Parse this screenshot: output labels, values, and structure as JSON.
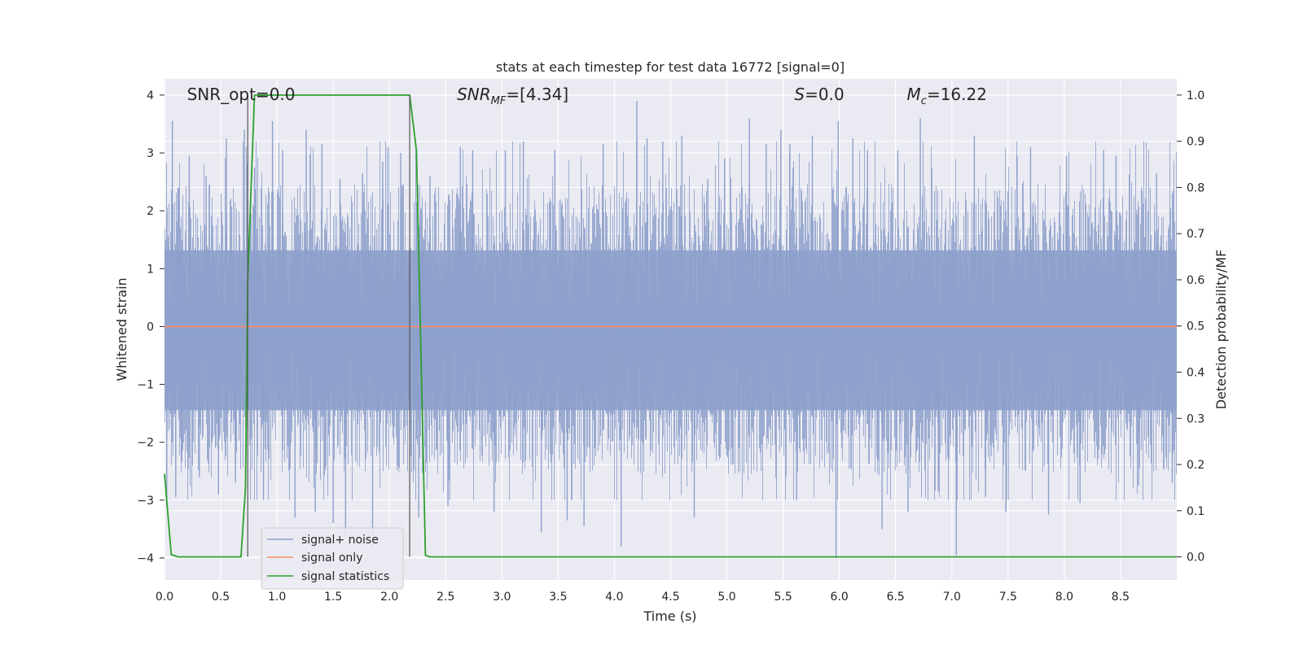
{
  "chart_data": {
    "type": "line",
    "title": "stats at each timestep for test data 16772 [signal=0]",
    "xlabel": "Time (s)",
    "ylabel_left": "Whitened strain",
    "ylabel_right": "Detection probability/MF",
    "xlim": [
      0.0,
      9.0
    ],
    "ylim_left": [
      -4.38,
      4.28
    ],
    "ylim_right": [
      -0.05,
      1.035
    ],
    "grid": true,
    "legend_position": "lower-left",
    "x_ticks": [
      "0.0",
      "0.5",
      "1.0",
      "1.5",
      "2.0",
      "2.5",
      "3.0",
      "3.5",
      "4.0",
      "4.5",
      "5.0",
      "5.5",
      "6.0",
      "6.5",
      "7.0",
      "7.5",
      "8.0",
      "8.5"
    ],
    "x_tick_values": [
      0.0,
      0.5,
      1.0,
      1.5,
      2.0,
      2.5,
      3.0,
      3.5,
      4.0,
      4.5,
      5.0,
      5.5,
      6.0,
      6.5,
      7.0,
      7.5,
      8.0,
      8.5
    ],
    "y_left_ticks": [
      "4",
      "3",
      "2",
      "1",
      "0",
      "−1",
      "−2",
      "−3",
      "−4"
    ],
    "y_left_tick_values": [
      4,
      3,
      2,
      1,
      0,
      -1,
      -2,
      -3,
      -4
    ],
    "y_right_ticks": [
      "1.0",
      "0.9",
      "0.8",
      "0.7",
      "0.6",
      "0.5",
      "0.4",
      "0.3",
      "0.2",
      "0.1",
      "0.0"
    ],
    "y_right_tick_values": [
      1.0,
      0.9,
      0.8,
      0.7,
      0.6,
      0.5,
      0.4,
      0.3,
      0.2,
      0.1,
      0.0
    ],
    "annotations": [
      {
        "text": "SNR_opt=0.0",
        "x": 0.2
      },
      {
        "text": "SNR",
        "sub": "MF",
        "tail": "=[4.34]",
        "x": 2.6,
        "italic": true
      },
      {
        "text": "S",
        "tail": "=0.0",
        "x": 5.6,
        "italic": true
      },
      {
        "text": "M",
        "sub": "c",
        "tail": "=16.22",
        "x": 6.6,
        "italic": true
      }
    ],
    "series": [
      {
        "name": "signal+ noise",
        "axis": "left",
        "color": "#8da0cb",
        "kind": "noise",
        "envelope": {
          "upper_typical": 1.55,
          "lower_typical": -1.7,
          "spike_max": 3.9,
          "spike_min": -4.0
        },
        "x": [
          0.02,
          0.07,
          0.1,
          0.12,
          0.15,
          0.22,
          0.31,
          0.37,
          0.48,
          0.55,
          0.63,
          0.71,
          0.8,
          0.88,
          0.96,
          1.05,
          1.16,
          1.26,
          1.34,
          1.4,
          1.5,
          1.56,
          1.61,
          1.76,
          1.85,
          1.94,
          2.1,
          2.26,
          2.36,
          2.52,
          2.63,
          2.74,
          2.93,
          3.03,
          3.19,
          3.35,
          3.47,
          3.58,
          3.73,
          3.9,
          4.06,
          4.2,
          4.29,
          4.43,
          4.6,
          4.71,
          4.83,
          4.98,
          5.2,
          5.35,
          5.48,
          5.56,
          5.62,
          5.76,
          5.97,
          5.99,
          6.12,
          6.25,
          6.38,
          6.52,
          6.61,
          6.72,
          6.88,
          7.04,
          7.2,
          7.3,
          7.48,
          7.58,
          7.7,
          7.86,
          8.02,
          8.14,
          8.35,
          8.46,
          8.66,
          8.82,
          8.96
        ],
        "y": [
          -3.1,
          3.55,
          -2.95,
          2.4,
          -2.3,
          2.95,
          -2.6,
          2.6,
          -2.9,
          3.25,
          -2.7,
          3.4,
          2.75,
          -3.0,
          3.55,
          3.05,
          -3.3,
          3.4,
          -3.2,
          3.15,
          -3.4,
          2.55,
          -3.65,
          2.65,
          -3.8,
          2.85,
          3.0,
          -3.3,
          2.6,
          -3.1,
          3.1,
          3.05,
          -3.2,
          3.05,
          3.2,
          -3.55,
          3.05,
          -3.35,
          -3.45,
          3.15,
          -3.8,
          3.9,
          3.25,
          3.2,
          3.3,
          -3.3,
          2.55,
          2.9,
          3.6,
          3.15,
          3.4,
          3.15,
          -3.0,
          3.3,
          -4.0,
          3.55,
          3.25,
          3.05,
          -3.5,
          3.05,
          -3.2,
          3.6,
          -2.85,
          -3.95,
          3.3,
          -2.95,
          -3.2,
          2.95,
          3.1,
          -3.25,
          2.95,
          -3.05,
          3.05,
          2.95,
          -2.75,
          2.65,
          -2.7
        ]
      },
      {
        "name": "signal only",
        "axis": "left",
        "color": "#fc8d62",
        "x": [
          0.0,
          9.0
        ],
        "y": [
          0.0,
          0.0
        ]
      },
      {
        "name": "signal statistics",
        "axis": "right",
        "color": "#2ca02c",
        "x": [
          0.0,
          0.06,
          0.12,
          0.68,
          0.72,
          0.74,
          0.8,
          2.18,
          2.24,
          2.32,
          2.36,
          9.0
        ],
        "y": [
          0.18,
          0.005,
          0.0,
          0.0,
          0.15,
          0.6,
          1.0,
          1.0,
          0.88,
          0.003,
          0.0,
          0.0
        ]
      }
    ],
    "vertical_markers": [
      0.74,
      2.18
    ]
  }
}
